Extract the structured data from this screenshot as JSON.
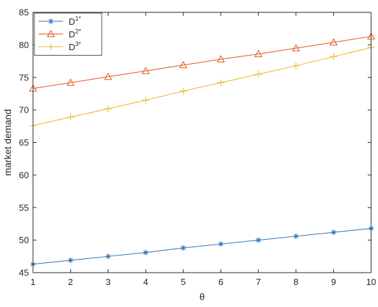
{
  "chart_data": {
    "type": "line",
    "title": "",
    "xlabel": "θ",
    "ylabel": "market demand",
    "x": [
      1,
      2,
      3,
      4,
      5,
      6,
      7,
      8,
      9,
      10
    ],
    "xlim": [
      1,
      10
    ],
    "ylim": [
      45,
      85
    ],
    "xticks": [
      1,
      2,
      3,
      4,
      5,
      6,
      7,
      8,
      9,
      10
    ],
    "yticks": [
      45,
      50,
      55,
      60,
      65,
      70,
      75,
      80,
      85
    ],
    "grid": false,
    "legend_position": "top-left",
    "series": [
      {
        "name": "D",
        "sup": "1*",
        "color": "#1f6fb5",
        "marker": "asterisk",
        "values": [
          46.3,
          46.9,
          47.5,
          48.1,
          48.8,
          49.4,
          50.0,
          50.6,
          51.2,
          51.8
        ]
      },
      {
        "name": "D",
        "sup": "2*",
        "color": "#e0531f",
        "marker": "triangle",
        "values": [
          73.3,
          74.2,
          75.1,
          76.0,
          76.9,
          77.8,
          78.6,
          79.5,
          80.4,
          81.3
        ]
      },
      {
        "name": "D",
        "sup": "3*",
        "color": "#f2b01e",
        "marker": "plus",
        "values": [
          67.6,
          68.9,
          70.2,
          71.5,
          72.9,
          74.2,
          75.5,
          76.8,
          78.2,
          79.6
        ]
      }
    ]
  }
}
